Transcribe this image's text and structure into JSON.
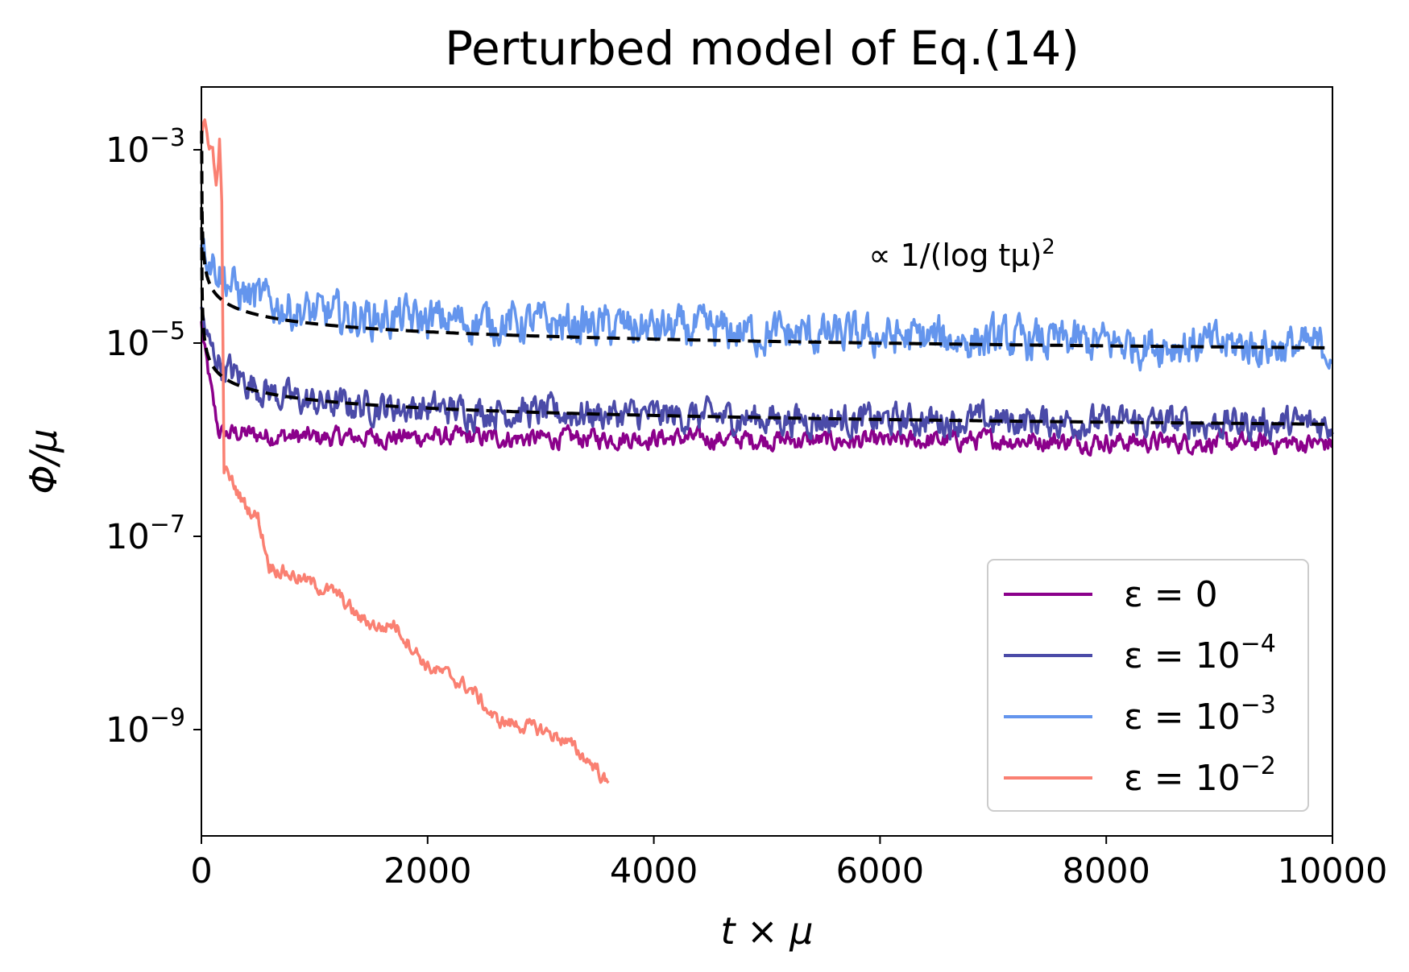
{
  "chart_data": {
    "type": "line",
    "title": "Perturbed model of Eq.(14)",
    "xlabel": "t × μ",
    "ylabel": "Φ/μ",
    "xlim": [
      0,
      10000
    ],
    "ylim_log10": [
      -10.1,
      -2.35
    ],
    "yscale": "log",
    "x_ticks": [
      0,
      2000,
      4000,
      6000,
      8000,
      10000
    ],
    "x_tick_labels": [
      "0",
      "2000",
      "4000",
      "6000",
      "8000",
      "10000"
    ],
    "y_ticks_log10": [
      -3,
      -5,
      -7,
      -9
    ],
    "y_tick_labels": [
      {
        "base": "10",
        "exp": "−3"
      },
      {
        "base": "10",
        "exp": "−5"
      },
      {
        "base": "10",
        "exp": "−7"
      },
      {
        "base": "10",
        "exp": "−9"
      }
    ],
    "legend_position": "lower-right",
    "annotation": {
      "text": "∝ 1/(log tμ)",
      "exp": "2",
      "x": 5900,
      "y_log10": -4.1
    },
    "series": [
      {
        "name": "ε = 0",
        "label_main": "ε = 0",
        "label_exp": "",
        "color": "#8b008b",
        "x": [
          0,
          30,
          60,
          100,
          150,
          200,
          300,
          500,
          1000,
          2000,
          3000,
          4000,
          5000,
          6000,
          7000,
          8000,
          9000,
          10000
        ],
        "y_log10": [
          -4.8,
          -5.1,
          -5.3,
          -5.6,
          -5.9,
          -5.95,
          -5.93,
          -5.95,
          -5.98,
          -5.97,
          -5.99,
          -5.98,
          -6.0,
          -6.02,
          -6.0,
          -6.02,
          -6.03,
          -6.04
        ],
        "noise": 0.08
      },
      {
        "name": "ε = 10^-4",
        "label_main": "ε = 10",
        "label_exp": "−4",
        "color": "#4b4ba8",
        "x": [
          0,
          30,
          60,
          100,
          200,
          400,
          700,
          1000,
          2000,
          3000,
          4000,
          5000,
          6000,
          7000,
          8000,
          9000,
          10000
        ],
        "y_log10": [
          -4.7,
          -4.85,
          -5.0,
          -5.1,
          -5.25,
          -5.4,
          -5.55,
          -5.62,
          -5.68,
          -5.72,
          -5.75,
          -5.78,
          -5.8,
          -5.8,
          -5.82,
          -5.83,
          -5.84
        ],
        "noise": 0.13
      },
      {
        "name": "ε = 10^-3",
        "label_main": "ε = 10",
        "label_exp": "−3",
        "color": "#6495ed",
        "x": [
          0,
          50,
          100,
          200,
          300,
          500,
          800,
          1000,
          2000,
          3000,
          4000,
          5000,
          6000,
          7000,
          8000,
          9000,
          10000
        ],
        "y_log10": [
          -3.9,
          -4.05,
          -4.15,
          -4.3,
          -4.45,
          -4.55,
          -4.65,
          -4.7,
          -4.76,
          -4.8,
          -4.85,
          -4.9,
          -4.94,
          -4.97,
          -5.0,
          -5.02,
          -5.05
        ],
        "noise": 0.17
      },
      {
        "name": "ε = 10^-2",
        "label_main": "ε = 10",
        "label_exp": "−2",
        "color": "#fa8072",
        "x": [
          0,
          30,
          60,
          100,
          130,
          160,
          180,
          200,
          250,
          300,
          350,
          400,
          500,
          600,
          800,
          1000,
          1200,
          1400,
          1600,
          1700,
          1800,
          2000,
          2200,
          2400,
          2600,
          2800,
          3000,
          3200,
          3400,
          3500,
          3600
        ],
        "y_log10": [
          -2.9,
          -2.75,
          -2.9,
          -3.0,
          -3.4,
          -2.9,
          -3.6,
          -6.3,
          -6.4,
          -6.5,
          -6.6,
          -6.7,
          -6.8,
          -7.3,
          -7.4,
          -7.5,
          -7.6,
          -7.85,
          -7.95,
          -7.9,
          -8.05,
          -8.35,
          -8.45,
          -8.6,
          -8.9,
          -8.95,
          -9.0,
          -9.1,
          -9.3,
          -9.4,
          -9.6
        ],
        "noise": 0.06
      }
    ],
    "fits": [
      {
        "name": "∝ 1/(log tμ)² fit (upper)",
        "style": "dashed",
        "color": "#000000",
        "anchor_t": 10000,
        "anchor_y_log10": -5.05
      },
      {
        "name": "∝ 1/(log tμ)² fit (lower)",
        "style": "dashed",
        "color": "#000000",
        "anchor_t": 10000,
        "anchor_y_log10": -5.84
      }
    ]
  }
}
